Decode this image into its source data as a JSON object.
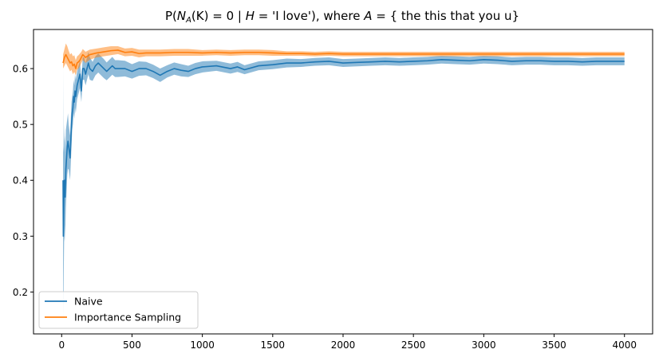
{
  "chart_data": {
    "type": "line",
    "title": "P(N_A(K) = 0 | H = 'I love'), where A = { the this that you u}",
    "title_parts": {
      "p": "P(",
      "n": "N",
      "sub_a": "A",
      "k": "(K) = 0 | ",
      "h": "H",
      "eq": " = 'I love'), where ",
      "a": "A",
      "set": " = { the this that you u}"
    },
    "xlabel": "",
    "ylabel": "",
    "xlim": [
      -200,
      4200
    ],
    "ylim": [
      0.125,
      0.67
    ],
    "x_ticks": [
      0,
      500,
      1000,
      1500,
      2000,
      2500,
      3000,
      3500,
      4000
    ],
    "x_tick_labels": [
      "0",
      "500",
      "1000",
      "1500",
      "2000",
      "2500",
      "3000",
      "3500",
      "4000"
    ],
    "y_ticks": [
      0.2,
      0.3,
      0.4,
      0.5,
      0.6
    ],
    "y_tick_labels": [
      "0.2",
      "0.3",
      "0.4",
      "0.5",
      "0.6"
    ],
    "grid": false,
    "legend_position": "lower-left",
    "series": [
      {
        "name": "Naive",
        "color": "#1f77b4",
        "band_color": "#1f77b4",
        "x": [
          10,
          12,
          15,
          18,
          20,
          22,
          25,
          28,
          30,
          35,
          40,
          45,
          50,
          55,
          60,
          65,
          70,
          75,
          80,
          85,
          90,
          95,
          100,
          110,
          120,
          130,
          140,
          150,
          160,
          170,
          180,
          190,
          200,
          220,
          240,
          260,
          280,
          300,
          320,
          340,
          360,
          380,
          400,
          450,
          500,
          550,
          600,
          650,
          700,
          750,
          800,
          850,
          900,
          950,
          1000,
          1100,
          1200,
          1250,
          1300,
          1400,
          1500,
          1600,
          1700,
          1800,
          1900,
          2000,
          2100,
          2200,
          2300,
          2400,
          2500,
          2600,
          2700,
          2800,
          2900,
          3000,
          3100,
          3200,
          3300,
          3400,
          3500,
          3600,
          3700,
          3800,
          3900,
          4000
        ],
        "y": [
          0.4,
          0.3,
          0.35,
          0.4,
          0.38,
          0.4,
          0.37,
          0.4,
          0.42,
          0.44,
          0.46,
          0.47,
          0.46,
          0.45,
          0.44,
          0.47,
          0.5,
          0.52,
          0.53,
          0.55,
          0.54,
          0.56,
          0.55,
          0.57,
          0.58,
          0.59,
          0.56,
          0.6,
          0.6,
          0.59,
          0.6,
          0.61,
          0.6,
          0.595,
          0.605,
          0.61,
          0.605,
          0.6,
          0.595,
          0.6,
          0.605,
          0.6,
          0.6,
          0.6,
          0.595,
          0.6,
          0.6,
          0.595,
          0.588,
          0.595,
          0.6,
          0.597,
          0.595,
          0.6,
          0.603,
          0.605,
          0.6,
          0.603,
          0.598,
          0.605,
          0.607,
          0.61,
          0.61,
          0.612,
          0.613,
          0.61,
          0.611,
          0.612,
          0.613,
          0.612,
          0.613,
          0.614,
          0.616,
          0.615,
          0.614,
          0.616,
          0.615,
          0.613,
          0.614,
          0.614,
          0.613,
          0.613,
          0.612,
          0.613,
          0.613,
          0.613
        ],
        "lower": [
          0.2,
          0.15,
          0.24,
          0.3,
          0.29,
          0.32,
          0.29,
          0.33,
          0.35,
          0.38,
          0.41,
          0.42,
          0.42,
          0.41,
          0.4,
          0.43,
          0.46,
          0.49,
          0.5,
          0.52,
          0.51,
          0.53,
          0.52,
          0.545,
          0.555,
          0.565,
          0.54,
          0.58,
          0.58,
          0.57,
          0.58,
          0.59,
          0.58,
          0.578,
          0.588,
          0.593,
          0.588,
          0.583,
          0.579,
          0.584,
          0.589,
          0.585,
          0.585,
          0.586,
          0.582,
          0.587,
          0.588,
          0.583,
          0.576,
          0.584,
          0.589,
          0.586,
          0.585,
          0.59,
          0.593,
          0.596,
          0.591,
          0.594,
          0.59,
          0.597,
          0.599,
          0.602,
          0.603,
          0.605,
          0.606,
          0.603,
          0.604,
          0.605,
          0.606,
          0.605,
          0.606,
          0.607,
          0.609,
          0.608,
          0.607,
          0.609,
          0.608,
          0.606,
          0.607,
          0.607,
          0.606,
          0.606,
          0.605,
          0.606,
          0.606,
          0.606
        ],
        "upper": [
          0.6,
          0.45,
          0.46,
          0.5,
          0.47,
          0.48,
          0.45,
          0.47,
          0.49,
          0.5,
          0.51,
          0.52,
          0.5,
          0.49,
          0.48,
          0.51,
          0.54,
          0.55,
          0.56,
          0.58,
          0.57,
          0.59,
          0.58,
          0.595,
          0.605,
          0.615,
          0.58,
          0.62,
          0.62,
          0.61,
          0.62,
          0.63,
          0.62,
          0.612,
          0.622,
          0.627,
          0.622,
          0.617,
          0.611,
          0.616,
          0.621,
          0.615,
          0.615,
          0.614,
          0.608,
          0.613,
          0.612,
          0.607,
          0.6,
          0.606,
          0.611,
          0.608,
          0.605,
          0.61,
          0.613,
          0.614,
          0.609,
          0.612,
          0.606,
          0.613,
          0.615,
          0.618,
          0.617,
          0.619,
          0.62,
          0.617,
          0.618,
          0.619,
          0.62,
          0.619,
          0.62,
          0.621,
          0.623,
          0.622,
          0.621,
          0.623,
          0.622,
          0.62,
          0.621,
          0.621,
          0.62,
          0.62,
          0.619,
          0.62,
          0.62,
          0.62
        ]
      },
      {
        "name": "Importance Sampling",
        "color": "#ff7f0e",
        "band_color": "#ff7f0e",
        "x": [
          10,
          20,
          30,
          40,
          50,
          60,
          70,
          80,
          90,
          100,
          110,
          120,
          130,
          140,
          150,
          170,
          200,
          250,
          300,
          350,
          400,
          450,
          500,
          550,
          600,
          700,
          800,
          900,
          1000,
          1100,
          1200,
          1300,
          1400,
          1500,
          1600,
          1700,
          1800,
          1900,
          2000,
          2200,
          2400,
          2600,
          2800,
          3000,
          3200,
          3400,
          3600,
          3800,
          4000
        ],
        "y": [
          0.61,
          0.62,
          0.625,
          0.62,
          0.615,
          0.61,
          0.612,
          0.605,
          0.608,
          0.6,
          0.61,
          0.612,
          0.615,
          0.62,
          0.625,
          0.62,
          0.625,
          0.628,
          0.63,
          0.632,
          0.633,
          0.629,
          0.63,
          0.627,
          0.628,
          0.628,
          0.629,
          0.629,
          0.628,
          0.629,
          0.628,
          0.629,
          0.629,
          0.628,
          0.627,
          0.627,
          0.626,
          0.627,
          0.626,
          0.626,
          0.626,
          0.626,
          0.626,
          0.626,
          0.626,
          0.626,
          0.626,
          0.626,
          0.626
        ],
        "lower": [
          0.6,
          0.605,
          0.61,
          0.605,
          0.6,
          0.595,
          0.598,
          0.59,
          0.594,
          0.588,
          0.598,
          0.6,
          0.604,
          0.61,
          0.615,
          0.61,
          0.616,
          0.62,
          0.622,
          0.624,
          0.626,
          0.622,
          0.623,
          0.62,
          0.622,
          0.622,
          0.623,
          0.623,
          0.623,
          0.624,
          0.623,
          0.624,
          0.624,
          0.623,
          0.623,
          0.623,
          0.622,
          0.623,
          0.622,
          0.622,
          0.622,
          0.622,
          0.622,
          0.622,
          0.622,
          0.622,
          0.622,
          0.622,
          0.622
        ],
        "upper": [
          0.625,
          0.635,
          0.645,
          0.64,
          0.632,
          0.625,
          0.628,
          0.622,
          0.624,
          0.615,
          0.622,
          0.624,
          0.627,
          0.63,
          0.635,
          0.63,
          0.634,
          0.636,
          0.638,
          0.64,
          0.64,
          0.636,
          0.637,
          0.634,
          0.634,
          0.634,
          0.635,
          0.635,
          0.633,
          0.634,
          0.633,
          0.634,
          0.634,
          0.633,
          0.631,
          0.631,
          0.63,
          0.631,
          0.63,
          0.63,
          0.63,
          0.63,
          0.63,
          0.63,
          0.63,
          0.63,
          0.63,
          0.63,
          0.63
        ]
      }
    ]
  }
}
